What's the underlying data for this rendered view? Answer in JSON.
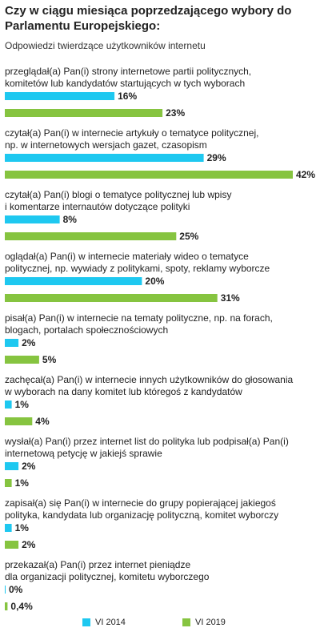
{
  "title": "Czy w ciągu miesiąca poprzedzającego wybory do Parlamentu Europejskiego:",
  "subtitle": "Odpowiedzi twierdzące użytkowników internetu",
  "colors": {
    "vi2014": "#1ec8f0",
    "vi2019": "#86c440"
  },
  "chart_data": {
    "type": "bar",
    "orientation": "horizontal",
    "xlim": [
      0,
      42
    ],
    "grid": false,
    "legend_position": "bottom",
    "categories": [
      "przeglądał(a) Pan(i) strony internetowe partii politycznych, komitetów lub kandydatów startujących w tych wyborach",
      "czytał(a) Pan(i) w internecie artykuły o tematyce politycznej, np. w internetowych wersjach gazet, czasopism",
      "czytał(a) Pan(i) blogi o tematyce politycznej lub wpisy i komentarze internautów dotyczące polityki",
      "oglądał(a) Pan(i) w internecie materiały wideo o tematyce politycznej, np. wywiady z politykami, spoty, reklamy wyborcze",
      "pisał(a) Pan(i) w internecie na tematy polityczne, np. na forach, blogach, portalach społecznościowych",
      "zachęcał(a) Pan(i) w internecie innych użytkowników do głosowania w wyborach na dany komitet lub któregoś z kandydatów",
      "wysłał(a) Pan(i) przez internet list do polityka lub podpisał(a) Pan(i) internetową petycję w jakiejś sprawie",
      "zapisał(a) się Pan(i) w internecie do grupy popierającej jakiegoś polityka, kandydata lub organizację polityczną, komitet wyborczy",
      "przekazał(a) Pan(i) przez internet pieniądze dla organizacji politycznej, komitetu wyborczego"
    ],
    "label_lines": [
      [
        "przeglądał(a) Pan(i) strony internetowe partii politycznych,",
        "komitetów lub kandydatów startujących w tych wyborach"
      ],
      [
        "czytał(a) Pan(i) w internecie artykuły o tematyce politycznej,",
        "np. w internetowych wersjach gazet, czasopism"
      ],
      [
        "czytał(a) Pan(i) blogi o tematyce politycznej lub wpisy",
        "i komentarze internautów dotyczące polityki"
      ],
      [
        "oglądał(a) Pan(i) w internecie materiały wideo o tematyce",
        "politycznej, np. wywiady z politykami, spoty, reklamy wyborcze"
      ],
      [
        "pisał(a) Pan(i) w internecie na tematy polityczne, np. na forach,",
        "blogach, portalach społecznościowych"
      ],
      [
        "zachęcał(a) Pan(i) w internecie innych użytkowników do głosowania",
        "w wyborach na dany komitet lub któregoś z kandydatów"
      ],
      [
        "wysłał(a) Pan(i) przez internet list do polityka lub podpisał(a) Pan(i)",
        "internetową petycję w jakiejś sprawie"
      ],
      [
        "zapisał(a) się Pan(i) w internecie do grupy popierającej jakiegoś",
        "polityka, kandydata lub organizację polityczną, komitet wyborczy"
      ],
      [
        "przekazał(a) Pan(i) przez internet pieniądze",
        "dla organizacji politycznej, komitetu wyborczego"
      ]
    ],
    "series": [
      {
        "name": "VI 2014",
        "values": [
          16,
          29,
          8,
          20,
          2,
          1,
          2,
          1,
          0
        ],
        "labels": [
          "16%",
          "29%",
          "8%",
          "20%",
          "2%",
          "1%",
          "2%",
          "1%",
          "0%"
        ]
      },
      {
        "name": "VI 2019",
        "values": [
          23,
          42,
          25,
          31,
          5,
          4,
          1,
          2,
          0.4
        ],
        "labels": [
          "23%",
          "42%",
          "25%",
          "31%",
          "5%",
          "4%",
          "1%",
          "2%",
          "0,4%"
        ]
      }
    ]
  }
}
